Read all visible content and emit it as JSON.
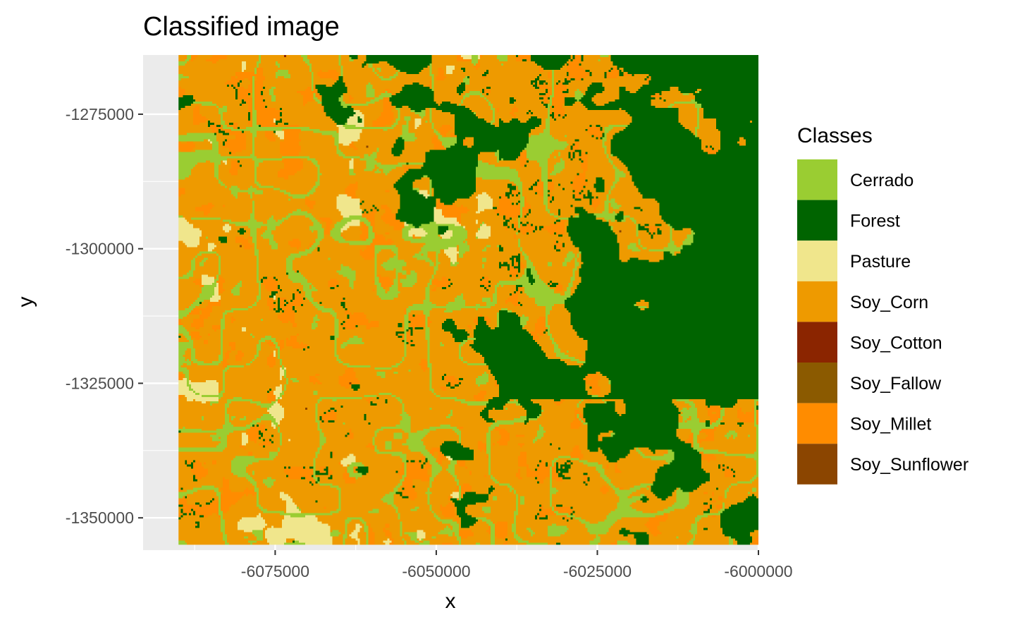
{
  "chart_data": {
    "type": "heatmap",
    "title": "Classified image",
    "xlabel": "x",
    "ylabel": "y",
    "xlim": [
      -6095500,
      -6000000
    ],
    "ylim": [
      -1356000,
      -1264000
    ],
    "data_extent": {
      "x": [
        -6090000,
        -5993000
      ],
      "y": [
        -1355000,
        -1256000
      ]
    },
    "x_ticks": [
      -6075000,
      -6050000,
      -6025000,
      -6000000
    ],
    "x_tick_labels": [
      "-6075000",
      "-6050000",
      "-6025000",
      "-6000000"
    ],
    "y_ticks": [
      -1275000,
      -1300000,
      -1325000,
      -1350000
    ],
    "y_tick_labels": [
      "-1275000",
      "-1300000",
      "-1325000",
      "-1350000"
    ],
    "grid": true,
    "legend": {
      "title": "Classes",
      "position": "right",
      "entries": [
        {
          "label": "Cerrado",
          "color": "#9acd32"
        },
        {
          "label": "Forest",
          "color": "#006400"
        },
        {
          "label": "Pasture",
          "color": "#f0e68c"
        },
        {
          "label": "Soy_Corn",
          "color": "#ee9a00"
        },
        {
          "label": "Soy_Cotton",
          "color": "#8b2500"
        },
        {
          "label": "Soy_Fallow",
          "color": "#8b5a00"
        },
        {
          "label": "Soy_Millet",
          "color": "#ff8c00"
        },
        {
          "label": "Soy_Sunflower",
          "color": "#8b4500"
        }
      ]
    },
    "colors": {
      "panel_background": "#ebebeb",
      "grid_line": "#ffffff"
    }
  }
}
